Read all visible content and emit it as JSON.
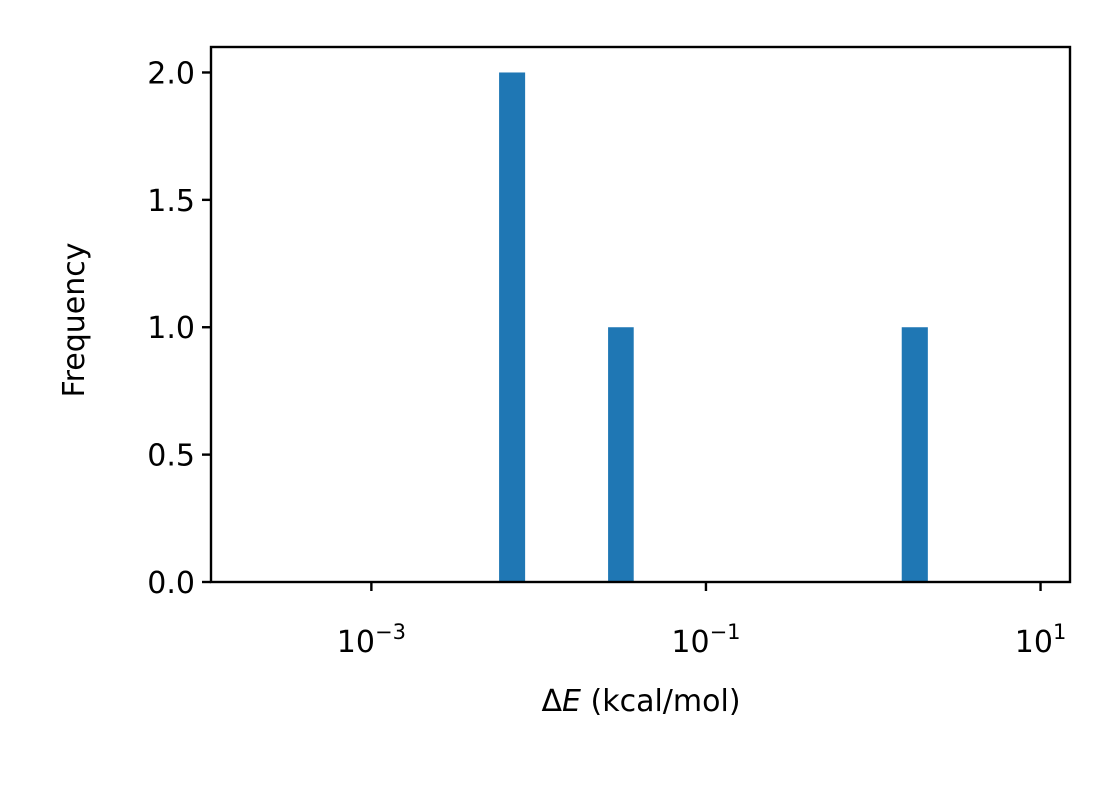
{
  "chart_data": {
    "type": "bar",
    "title": "",
    "xlabel_symbol": "ΔE",
    "xlabel_delta": "Δ",
    "xlabel_var": "E",
    "xlabel_unit": " (kcal/mol)",
    "ylabel": "Frequency",
    "x_scale": "log",
    "xlim": [
      0.00011,
      15
    ],
    "ylim": [
      0,
      2.1
    ],
    "y_ticks": [
      0.0,
      0.5,
      1.0,
      1.5,
      2.0
    ],
    "y_tick_labels": [
      "0.0",
      "0.5",
      "1.0",
      "1.5",
      "2.0"
    ],
    "x_ticks": [
      0.001,
      0.1,
      10
    ],
    "x_tick_labels": [
      {
        "base": "10",
        "exp": "−3"
      },
      {
        "base": "10",
        "exp": "−1"
      },
      {
        "base": "10",
        "exp": "1"
      }
    ],
    "bars": [
      {
        "x_start": 0.0058,
        "x_end": 0.0083,
        "count": 2
      },
      {
        "x_start": 0.026,
        "x_end": 0.037,
        "count": 1
      },
      {
        "x_start": 1.48,
        "x_end": 2.12,
        "count": 1
      }
    ],
    "bar_color": "#1f77b4",
    "grid": false,
    "legend": "none"
  }
}
